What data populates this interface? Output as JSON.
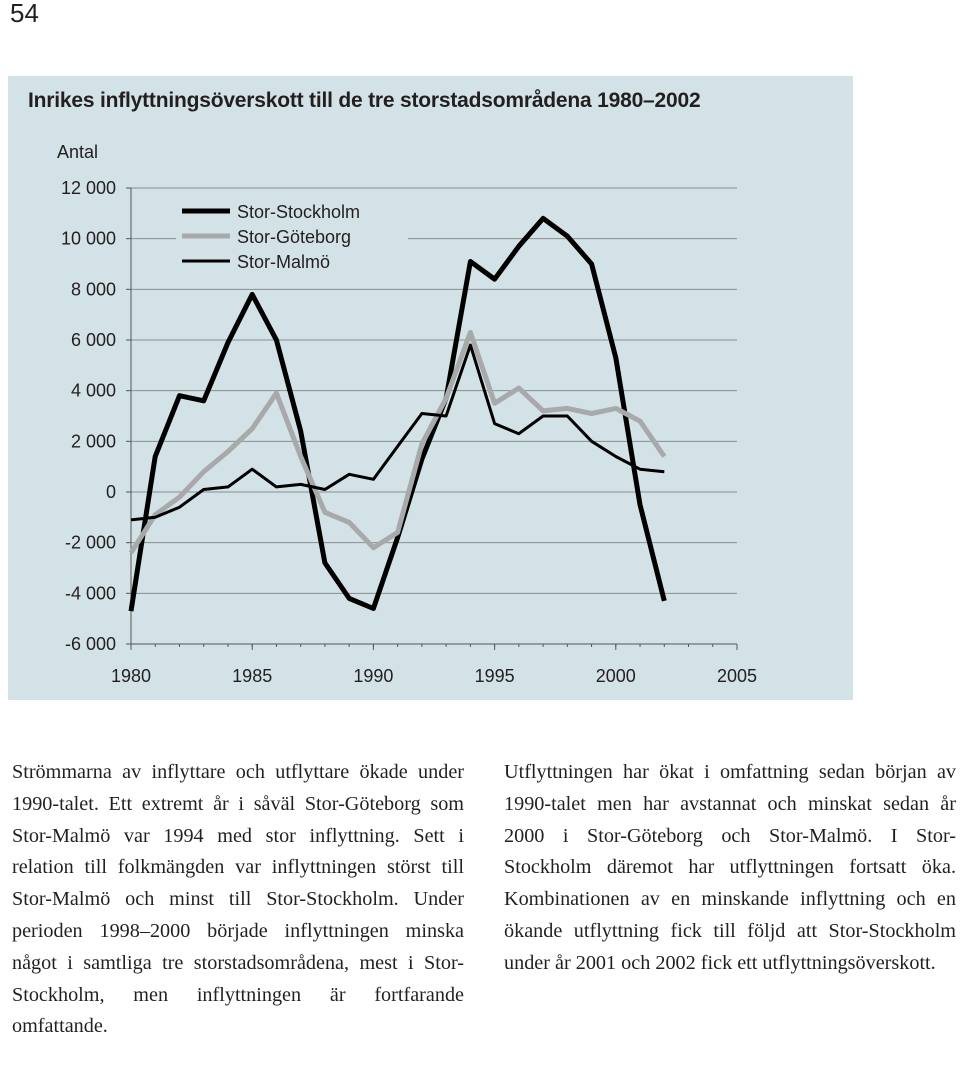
{
  "page": {
    "number": "54"
  },
  "chart_data": {
    "type": "line",
    "title": "Inrikes inflyttningsöverskott till de tre storstadsområdena 1980–2002",
    "ylabel": "Antal",
    "xlabel": "",
    "xlim": [
      1980,
      2005
    ],
    "ylim": [
      -6000,
      12000
    ],
    "x_ticks": [
      "1980",
      "1985",
      "1990",
      "1995",
      "2000",
      "2005"
    ],
    "y_ticks": [
      "12 000",
      "10 000",
      "8 000",
      "6 000",
      "4 000",
      "2 000",
      "0",
      "-2 000",
      "-4 000",
      "-6 000"
    ],
    "grid": "horizontal",
    "legend": "top-left",
    "x": [
      1980,
      1981,
      1982,
      1983,
      1984,
      1985,
      1986,
      1987,
      1988,
      1989,
      1990,
      1991,
      1992,
      1993,
      1994,
      1995,
      1996,
      1997,
      1998,
      1999,
      2000,
      2001,
      2002
    ],
    "series": [
      {
        "name": "Stor-Stockholm",
        "color": "#000000",
        "style": "thick",
        "values": [
          -4700,
          1400,
          3800,
          3600,
          5900,
          7800,
          6000,
          2400,
          -2800,
          -4200,
          -4600,
          -1800,
          1300,
          3700,
          9100,
          8400,
          9700,
          10800,
          10100,
          9000,
          5300,
          -500,
          -4300
        ]
      },
      {
        "name": "Stor-Göteborg",
        "color": "#a7a9ab",
        "style": "thick",
        "values": [
          -2400,
          -900,
          -200,
          800,
          1600,
          2500,
          3900,
          1400,
          -800,
          -1200,
          -2200,
          -1600,
          1900,
          3700,
          6300,
          3500,
          4100,
          3200,
          3300,
          3100,
          3300,
          2800,
          1400
        ]
      },
      {
        "name": "Stor-Malmö",
        "color": "#000000",
        "style": "thin",
        "values": [
          -1100,
          -1000,
          -600,
          100,
          200,
          900,
          200,
          300,
          100,
          700,
          500,
          1800,
          3100,
          3000,
          5800,
          2700,
          2300,
          3000,
          3000,
          2000,
          1400,
          900,
          800
        ]
      }
    ]
  },
  "text": {
    "left_column": "Strömmarna av inflyttare och utflyttare ökade under 1990-talet. Ett extremt år i såväl Stor-Göteborg som Stor-Malmö var 1994 med stor inflyttning. Sett i relation till folkmängden var inflyttningen störst till Stor-Malmö och minst till Stor-Stockholm. Under perioden 1998–2000 började inflyttningen minska något i samtliga tre storstadsområdena, mest i Stor-Stockholm, men inflyttningen är fortfarande omfattande.",
    "right_column": "Utflyttningen har ökat i omfattning sedan början av 1990-talet men har avstannat och minskat sedan år 2000 i Stor-Göteborg och Stor-Malmö. I Stor-Stockholm däremot har utflyttningen fortsatt öka. Kombinationen av en minskande inflyttning och en ökande utflyttning fick till följd att Stor-Stockholm under år 2001 och 2002 fick ett utflyttningsöverskott."
  }
}
